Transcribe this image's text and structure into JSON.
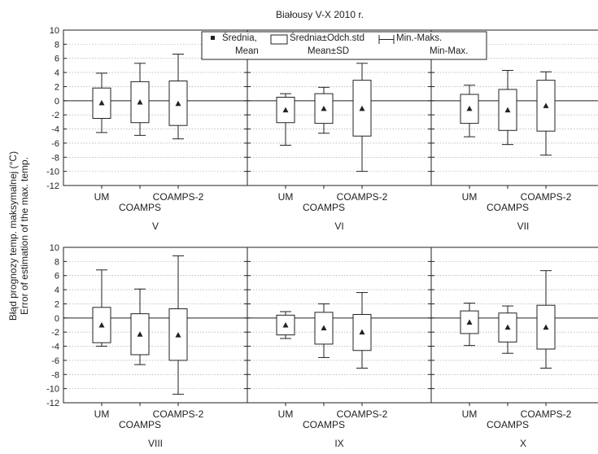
{
  "chart_data": {
    "type": "boxplot",
    "title": "Białousy V-X 2010 r.",
    "ylabel_line1": "Błąd prognozy temp. maksymalnej (°C)",
    "ylabel_line2": "Error of estimation of the max. temp.",
    "ylim": [
      -12,
      10
    ],
    "yticks": [
      10,
      8,
      6,
      4,
      2,
      0,
      -2,
      -4,
      -6,
      -8,
      -10,
      -12
    ],
    "grid": true,
    "legend_position": "top",
    "legend": {
      "mean_pl": "Średnia,",
      "mean_en": "Mean",
      "box_pl": "Średnia±Odch.std",
      "box_en": "Mean±SD",
      "whisker_pl": "Min.-Maks.",
      "whisker_en": "Min-Max."
    },
    "categories": [
      "UM",
      "COAMPS",
      "COAMPS-2"
    ],
    "panels": [
      {
        "month": "V",
        "series": [
          {
            "category": "UM",
            "mean": -0.3,
            "sd_low": -2.5,
            "sd_high": 1.8,
            "min": -4.5,
            "max": 3.9
          },
          {
            "category": "COAMPS",
            "mean": -0.2,
            "sd_low": -3.1,
            "sd_high": 2.7,
            "min": -4.9,
            "max": 5.3
          },
          {
            "category": "COAMPS-2",
            "mean": -0.4,
            "sd_low": -3.5,
            "sd_high": 2.8,
            "min": -5.4,
            "max": 6.6
          }
        ]
      },
      {
        "month": "VI",
        "series": [
          {
            "category": "UM",
            "mean": -1.3,
            "sd_low": -3.1,
            "sd_high": 0.5,
            "min": -6.3,
            "max": 1.0
          },
          {
            "category": "COAMPS",
            "mean": -1.1,
            "sd_low": -3.2,
            "sd_high": 1.0,
            "min": -4.6,
            "max": 1.9
          },
          {
            "category": "COAMPS-2",
            "mean": -1.1,
            "sd_low": -5.0,
            "sd_high": 2.9,
            "min": -10.0,
            "max": 5.3
          }
        ]
      },
      {
        "month": "VII",
        "series": [
          {
            "category": "UM",
            "mean": -1.1,
            "sd_low": -3.2,
            "sd_high": 0.9,
            "min": -5.1,
            "max": 2.2
          },
          {
            "category": "COAMPS",
            "mean": -1.3,
            "sd_low": -4.2,
            "sd_high": 1.6,
            "min": -6.2,
            "max": 4.3
          },
          {
            "category": "COAMPS-2",
            "mean": -0.7,
            "sd_low": -4.3,
            "sd_high": 2.9,
            "min": -7.7,
            "max": 4.1
          }
        ]
      },
      {
        "month": "VIII",
        "series": [
          {
            "category": "UM",
            "mean": -1.0,
            "sd_low": -3.5,
            "sd_high": 1.5,
            "min": -4.0,
            "max": 6.8
          },
          {
            "category": "COAMPS",
            "mean": -2.3,
            "sd_low": -5.2,
            "sd_high": 0.6,
            "min": -6.6,
            "max": 4.1
          },
          {
            "category": "COAMPS-2",
            "mean": -2.4,
            "sd_low": -6.0,
            "sd_high": 1.3,
            "min": -10.8,
            "max": 8.8
          }
        ]
      },
      {
        "month": "IX",
        "series": [
          {
            "category": "UM",
            "mean": -1.0,
            "sd_low": -2.4,
            "sd_high": 0.4,
            "min": -2.9,
            "max": 0.9
          },
          {
            "category": "COAMPS",
            "mean": -1.4,
            "sd_low": -3.7,
            "sd_high": 0.8,
            "min": -5.6,
            "max": 2.0
          },
          {
            "category": "COAMPS-2",
            "mean": -2.0,
            "sd_low": -4.6,
            "sd_high": 0.5,
            "min": -7.1,
            "max": 3.6
          }
        ]
      },
      {
        "month": "X",
        "series": [
          {
            "category": "UM",
            "mean": -0.6,
            "sd_low": -2.2,
            "sd_high": 1.0,
            "min": -3.9,
            "max": 2.1
          },
          {
            "category": "COAMPS",
            "mean": -1.3,
            "sd_low": -3.4,
            "sd_high": 0.7,
            "min": -5.0,
            "max": 1.7
          },
          {
            "category": "COAMPS-2",
            "mean": -1.3,
            "sd_low": -4.4,
            "sd_high": 1.8,
            "min": -7.1,
            "max": 6.7
          }
        ]
      }
    ]
  }
}
